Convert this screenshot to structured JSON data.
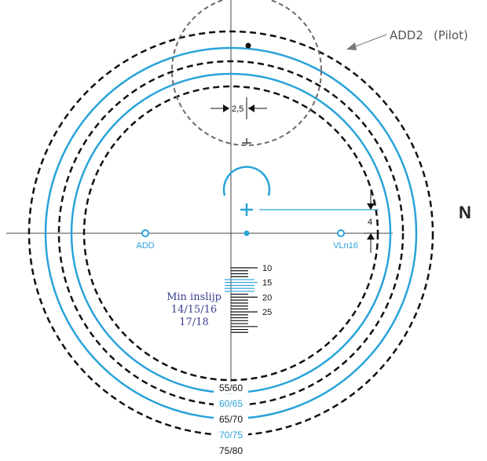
{
  "colors": {
    "accent": "#29a3d9",
    "dark": "#111111",
    "grey": "#666666",
    "navy": "#3a3f8f"
  },
  "labels": {
    "add2": "ADD2",
    "pilot": "(Pilot)",
    "n": "N",
    "add": "ADD",
    "vln16": "VLn16",
    "offset_2_5": "2,5",
    "offset_4": "4",
    "min_inslijp_1": "Min inslijp",
    "min_inslijp_2": "14/15/16",
    "min_inslijp_3": "17/18"
  },
  "scale": {
    "ticks": [
      "10",
      "15",
      "20",
      "25"
    ]
  },
  "rings": [
    {
      "label": "55/60",
      "color": "dark",
      "style": "dashed"
    },
    {
      "label": "60/65",
      "color": "accent",
      "style": "solid"
    },
    {
      "label": "65/70",
      "color": "dark",
      "style": "dashed"
    },
    {
      "label": "70/75",
      "color": "accent",
      "style": "solid"
    },
    {
      "label": "75/80",
      "color": "dark",
      "style": "dashed"
    }
  ]
}
